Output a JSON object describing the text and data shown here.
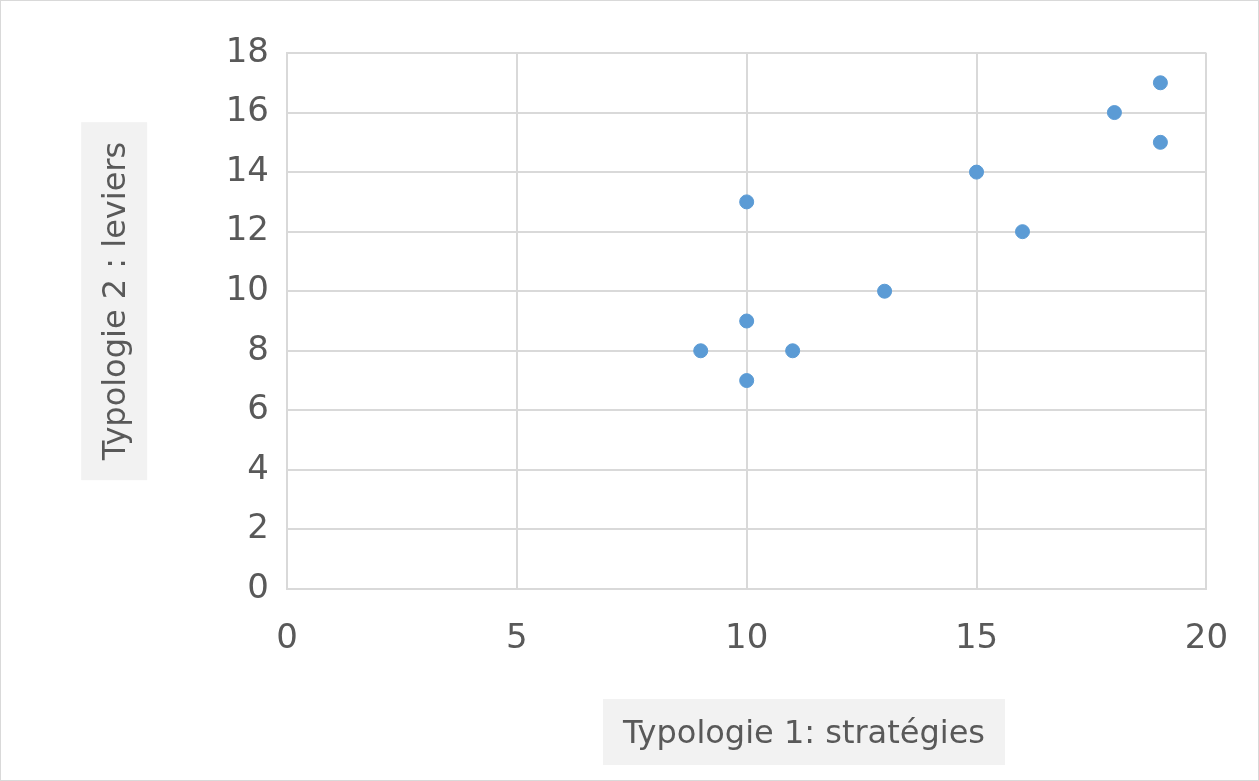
{
  "chart_data": {
    "type": "scatter",
    "xlabel": "Typologie 1: stratégies",
    "ylabel": "Typologie 2 : leviers",
    "x": [
      9,
      10,
      10,
      10,
      11,
      13,
      15,
      16,
      18,
      19,
      19
    ],
    "series": [
      {
        "color": "#5b9bd5",
        "values": [
          8,
          7,
          9,
          13,
          8,
          10,
          14,
          12,
          16,
          17,
          15
        ]
      }
    ],
    "xlim": [
      0,
      20
    ],
    "xticks": [
      0,
      5,
      10,
      15,
      20
    ],
    "ylim": [
      0,
      18
    ],
    "yticks": [
      0,
      2,
      4,
      6,
      8,
      10,
      12,
      14,
      16,
      18
    ],
    "grid": true,
    "legend": false,
    "marker": "circle"
  }
}
